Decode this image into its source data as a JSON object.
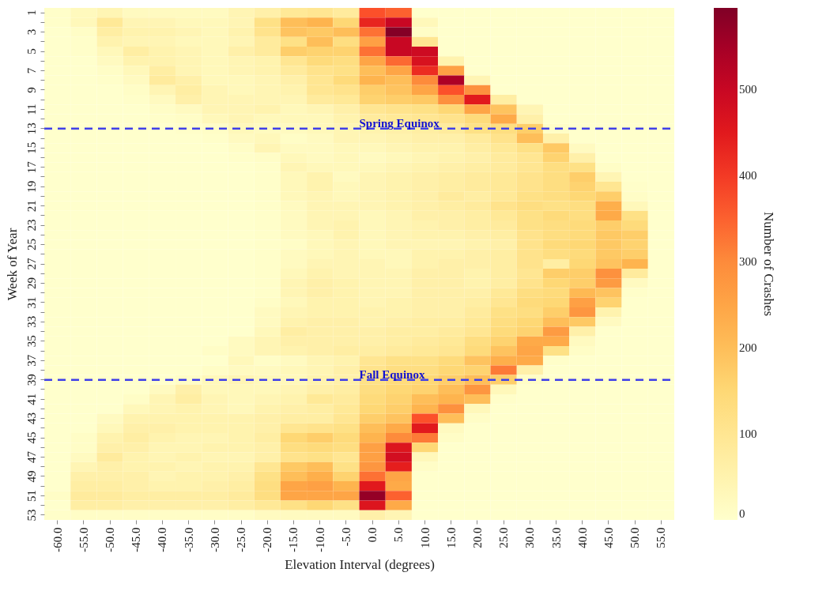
{
  "chart_data": {
    "type": "heatmap",
    "xlabel": "Elevation Interval (degrees)",
    "ylabel": "Week of Year",
    "clabel": "Number of Crashes",
    "categories": [
      "-60.0",
      "-55.0",
      "-50.0",
      "-45.0",
      "-40.0",
      "-35.0",
      "-30.0",
      "-25.0",
      "-20.0",
      "-15.0",
      "-10.0",
      "-5.0",
      "0.0",
      "5.0",
      "10.0",
      "15.0",
      "20.0",
      "25.0",
      "30.0",
      "35.0",
      "40.0",
      "45.0",
      "50.0",
      "55.0"
    ],
    "y_categories": [
      "1",
      null,
      "3",
      null,
      "5",
      null,
      "7",
      null,
      "9",
      null,
      "11",
      null,
      "13",
      null,
      "15",
      null,
      "17",
      null,
      "19",
      null,
      "21",
      null,
      "23",
      null,
      "25",
      null,
      "27",
      null,
      "29",
      null,
      "31",
      null,
      "33",
      null,
      "35",
      null,
      "37",
      null,
      "39",
      null,
      "41",
      null,
      "43",
      null,
      "45",
      null,
      "47",
      null,
      "49",
      null,
      "51",
      null,
      "53"
    ],
    "cells": [
      [
        5,
        25,
        40,
        20,
        20,
        20,
        20,
        40,
        60,
        90,
        100,
        80,
        370,
        350,
        0,
        0,
        0,
        0,
        0,
        0,
        0,
        0,
        0,
        0
      ],
      [
        5,
        30,
        90,
        40,
        40,
        30,
        30,
        40,
        120,
        200,
        220,
        150,
        430,
        500,
        30,
        0,
        0,
        0,
        0,
        0,
        0,
        0,
        0,
        0
      ],
      [
        0,
        10,
        70,
        50,
        50,
        40,
        30,
        50,
        110,
        190,
        180,
        200,
        330,
        590,
        10,
        0,
        0,
        0,
        0,
        0,
        0,
        0,
        0,
        0
      ],
      [
        0,
        5,
        50,
        40,
        40,
        30,
        30,
        40,
        80,
        120,
        200,
        130,
        260,
        500,
        100,
        0,
        0,
        0,
        0,
        0,
        0,
        0,
        0,
        0
      ],
      [
        0,
        5,
        30,
        70,
        50,
        40,
        30,
        60,
        80,
        170,
        160,
        160,
        330,
        500,
        490,
        0,
        0,
        0,
        0,
        0,
        0,
        0,
        0,
        0
      ],
      [
        0,
        0,
        20,
        50,
        50,
        40,
        30,
        40,
        50,
        100,
        140,
        130,
        250,
        340,
        470,
        50,
        0,
        0,
        0,
        0,
        0,
        0,
        0,
        0
      ],
      [
        0,
        0,
        10,
        30,
        70,
        40,
        30,
        40,
        50,
        80,
        110,
        120,
        200,
        250,
        420,
        260,
        0,
        0,
        0,
        0,
        0,
        0,
        0,
        0
      ],
      [
        0,
        0,
        5,
        20,
        80,
        60,
        30,
        30,
        40,
        60,
        100,
        140,
        220,
        200,
        300,
        540,
        40,
        0,
        0,
        0,
        0,
        0,
        0,
        0
      ],
      [
        0,
        0,
        0,
        10,
        40,
        70,
        40,
        30,
        40,
        50,
        100,
        110,
        170,
        190,
        250,
        370,
        290,
        0,
        0,
        0,
        0,
        0,
        0,
        0
      ],
      [
        0,
        0,
        0,
        5,
        20,
        60,
        40,
        40,
        40,
        40,
        80,
        90,
        160,
        170,
        180,
        290,
        450,
        70,
        0,
        0,
        0,
        0,
        0,
        0
      ],
      [
        0,
        0,
        0,
        0,
        10,
        20,
        40,
        40,
        50,
        30,
        40,
        60,
        100,
        110,
        120,
        150,
        250,
        190,
        40,
        0,
        0,
        0,
        0,
        0
      ],
      [
        0,
        0,
        0,
        0,
        5,
        10,
        30,
        40,
        30,
        30,
        30,
        50,
        80,
        90,
        100,
        110,
        140,
        240,
        60,
        0,
        0,
        0,
        0,
        0
      ],
      [
        0,
        0,
        0,
        0,
        0,
        5,
        10,
        30,
        20,
        20,
        30,
        40,
        50,
        60,
        70,
        80,
        120,
        130,
        170,
        10,
        0,
        0,
        0,
        0
      ],
      [
        0,
        0,
        0,
        0,
        0,
        0,
        5,
        20,
        30,
        10,
        20,
        40,
        40,
        50,
        60,
        60,
        80,
        110,
        200,
        60,
        0,
        0,
        0,
        0
      ],
      [
        0,
        0,
        0,
        0,
        0,
        0,
        0,
        10,
        40,
        20,
        20,
        30,
        30,
        40,
        50,
        50,
        70,
        90,
        120,
        180,
        20,
        0,
        0,
        0
      ],
      [
        0,
        0,
        0,
        0,
        0,
        0,
        0,
        5,
        10,
        30,
        20,
        30,
        20,
        30,
        40,
        50,
        60,
        80,
        100,
        160,
        60,
        0,
        0,
        0
      ],
      [
        0,
        0,
        0,
        0,
        0,
        0,
        0,
        0,
        5,
        40,
        30,
        30,
        30,
        40,
        50,
        60,
        70,
        80,
        100,
        130,
        120,
        10,
        0,
        0
      ],
      [
        0,
        0,
        0,
        0,
        0,
        0,
        0,
        0,
        5,
        30,
        50,
        20,
        40,
        50,
        60,
        70,
        80,
        90,
        110,
        130,
        170,
        40,
        0,
        0
      ],
      [
        0,
        0,
        0,
        0,
        0,
        0,
        0,
        0,
        5,
        30,
        50,
        30,
        40,
        50,
        60,
        70,
        80,
        90,
        110,
        130,
        160,
        100,
        5,
        0
      ],
      [
        0,
        0,
        0,
        0,
        0,
        0,
        0,
        0,
        5,
        30,
        40,
        30,
        40,
        50,
        60,
        80,
        70,
        90,
        120,
        130,
        150,
        170,
        10,
        0
      ],
      [
        0,
        0,
        0,
        0,
        0,
        0,
        0,
        0,
        5,
        20,
        40,
        40,
        40,
        50,
        60,
        70,
        80,
        110,
        130,
        120,
        130,
        230,
        30,
        0
      ],
      [
        0,
        0,
        0,
        0,
        0,
        0,
        0,
        0,
        5,
        20,
        40,
        40,
        30,
        40,
        60,
        60,
        70,
        90,
        120,
        140,
        130,
        240,
        120,
        0
      ],
      [
        0,
        0,
        0,
        0,
        0,
        0,
        0,
        0,
        5,
        20,
        40,
        50,
        30,
        40,
        50,
        60,
        70,
        80,
        120,
        130,
        140,
        170,
        140,
        0
      ],
      [
        0,
        0,
        0,
        0,
        0,
        0,
        0,
        0,
        5,
        20,
        30,
        50,
        30,
        40,
        50,
        50,
        60,
        70,
        110,
        130,
        140,
        180,
        170,
        0
      ],
      [
        0,
        0,
        0,
        0,
        0,
        0,
        0,
        0,
        5,
        10,
        30,
        40,
        30,
        40,
        40,
        40,
        50,
        60,
        110,
        140,
        150,
        180,
        160,
        0
      ],
      [
        0,
        0,
        0,
        0,
        0,
        0,
        0,
        0,
        5,
        20,
        30,
        40,
        30,
        30,
        50,
        50,
        60,
        70,
        110,
        130,
        140,
        180,
        170,
        0
      ],
      [
        0,
        0,
        0,
        0,
        0,
        0,
        0,
        0,
        5,
        20,
        40,
        40,
        40,
        30,
        50,
        60,
        60,
        70,
        110,
        70,
        150,
        190,
        220,
        0
      ],
      [
        0,
        0,
        0,
        0,
        0,
        0,
        0,
        0,
        5,
        30,
        50,
        40,
        40,
        40,
        60,
        60,
        50,
        70,
        100,
        170,
        170,
        290,
        80,
        0
      ],
      [
        0,
        0,
        0,
        0,
        0,
        0,
        0,
        0,
        5,
        40,
        60,
        50,
        40,
        40,
        60,
        60,
        50,
        70,
        110,
        150,
        170,
        270,
        20,
        0
      ],
      [
        0,
        0,
        0,
        0,
        0,
        0,
        0,
        0,
        5,
        40,
        60,
        50,
        40,
        40,
        60,
        60,
        60,
        90,
        130,
        140,
        210,
        190,
        5,
        0
      ],
      [
        0,
        0,
        0,
        0,
        0,
        0,
        0,
        0,
        10,
        30,
        50,
        50,
        40,
        50,
        60,
        60,
        70,
        100,
        140,
        150,
        260,
        160,
        0,
        0
      ],
      [
        0,
        0,
        0,
        0,
        0,
        0,
        0,
        0,
        20,
        40,
        50,
        50,
        50,
        50,
        60,
        60,
        80,
        120,
        130,
        170,
        280,
        50,
        0,
        0
      ],
      [
        0,
        0,
        0,
        0,
        0,
        0,
        0,
        0,
        20,
        50,
        60,
        60,
        50,
        60,
        70,
        70,
        90,
        130,
        150,
        200,
        180,
        20,
        0,
        0
      ],
      [
        0,
        0,
        0,
        0,
        0,
        0,
        0,
        0,
        30,
        70,
        60,
        60,
        60,
        70,
        70,
        80,
        100,
        140,
        160,
        270,
        60,
        0,
        0,
        0
      ],
      [
        0,
        0,
        0,
        0,
        0,
        0,
        0,
        20,
        40,
        60,
        60,
        60,
        60,
        70,
        80,
        90,
        130,
        160,
        240,
        240,
        20,
        0,
        0,
        0
      ],
      [
        0,
        0,
        0,
        0,
        0,
        0,
        10,
        20,
        40,
        50,
        60,
        70,
        70,
        80,
        90,
        100,
        140,
        190,
        250,
        120,
        10,
        0,
        0,
        0
      ],
      [
        0,
        0,
        0,
        0,
        0,
        0,
        0,
        30,
        10,
        20,
        40,
        50,
        100,
        120,
        120,
        140,
        190,
        230,
        240,
        5,
        0,
        0,
        0,
        0
      ],
      [
        0,
        0,
        0,
        0,
        0,
        0,
        10,
        20,
        20,
        30,
        40,
        60,
        110,
        130,
        130,
        150,
        160,
        320,
        60,
        0,
        0,
        0,
        0,
        0
      ],
      [
        0,
        0,
        0,
        0,
        0,
        10,
        30,
        40,
        30,
        30,
        50,
        60,
        120,
        140,
        150,
        170,
        200,
        170,
        10,
        0,
        0,
        0,
        0,
        0
      ],
      [
        0,
        0,
        0,
        0,
        20,
        60,
        30,
        30,
        30,
        40,
        60,
        70,
        130,
        150,
        160,
        200,
        280,
        30,
        0,
        0,
        0,
        0,
        0,
        0
      ],
      [
        0,
        0,
        0,
        10,
        40,
        70,
        40,
        30,
        40,
        50,
        90,
        80,
        140,
        160,
        200,
        220,
        200,
        5,
        0,
        0,
        0,
        0,
        0,
        0
      ],
      [
        0,
        0,
        0,
        30,
        40,
        50,
        40,
        30,
        50,
        60,
        70,
        90,
        150,
        170,
        220,
        290,
        30,
        0,
        0,
        0,
        0,
        0,
        0,
        0
      ],
      [
        0,
        0,
        20,
        50,
        50,
        50,
        50,
        50,
        60,
        70,
        70,
        100,
        170,
        190,
        370,
        200,
        10,
        0,
        0,
        0,
        0,
        0,
        0,
        0
      ],
      [
        0,
        0,
        30,
        60,
        60,
        50,
        50,
        50,
        60,
        100,
        110,
        120,
        200,
        240,
        450,
        20,
        0,
        0,
        0,
        0,
        0,
        0,
        0,
        0
      ],
      [
        0,
        10,
        50,
        70,
        50,
        40,
        40,
        50,
        70,
        150,
        170,
        140,
        220,
        300,
        320,
        10,
        0,
        0,
        0,
        0,
        0,
        0,
        0,
        0
      ],
      [
        0,
        10,
        60,
        60,
        40,
        40,
        50,
        50,
        60,
        130,
        140,
        130,
        260,
        460,
        150,
        0,
        0,
        0,
        0,
        0,
        0,
        0,
        0,
        0
      ],
      [
        0,
        20,
        80,
        50,
        40,
        50,
        40,
        40,
        60,
        110,
        120,
        100,
        260,
        480,
        30,
        0,
        0,
        0,
        0,
        0,
        0,
        0,
        0,
        0
      ],
      [
        0,
        40,
        60,
        50,
        50,
        40,
        50,
        50,
        100,
        180,
        200,
        120,
        280,
        440,
        10,
        0,
        0,
        0,
        0,
        0,
        0,
        0,
        0,
        0
      ],
      [
        0,
        60,
        60,
        60,
        40,
        50,
        50,
        60,
        120,
        200,
        230,
        160,
        330,
        250,
        0,
        0,
        0,
        0,
        0,
        0,
        0,
        0,
        0,
        0
      ],
      [
        0,
        70,
        70,
        60,
        50,
        50,
        60,
        70,
        130,
        250,
        260,
        220,
        450,
        240,
        0,
        0,
        0,
        0,
        0,
        0,
        0,
        0,
        0,
        0
      ],
      [
        10,
        80,
        80,
        70,
        70,
        70,
        70,
        80,
        130,
        250,
        250,
        250,
        570,
        350,
        0,
        0,
        0,
        0,
        0,
        0,
        0,
        0,
        0,
        0
      ],
      [
        0,
        70,
        70,
        60,
        60,
        60,
        60,
        70,
        90,
        120,
        150,
        120,
        460,
        240,
        0,
        0,
        0,
        0,
        0,
        0,
        0,
        0,
        0,
        0
      ],
      [
        5,
        10,
        10,
        10,
        10,
        10,
        10,
        10,
        20,
        20,
        20,
        20,
        60,
        40,
        0,
        0,
        0,
        0,
        0,
        0,
        0,
        0,
        0,
        0
      ]
    ],
    "clim": [
      0,
      595
    ],
    "cticks": [
      0,
      100,
      200,
      300,
      400,
      500
    ],
    "ref_lines": [
      {
        "axis": "y",
        "value": "13",
        "label": "Spring Equinox",
        "color": "#3f3fe8",
        "line_style": "dashed"
      },
      {
        "axis": "y",
        "value": "39",
        "label": "Fall Equinox",
        "color": "#3f3fe8",
        "line_style": "dashed"
      }
    ]
  }
}
